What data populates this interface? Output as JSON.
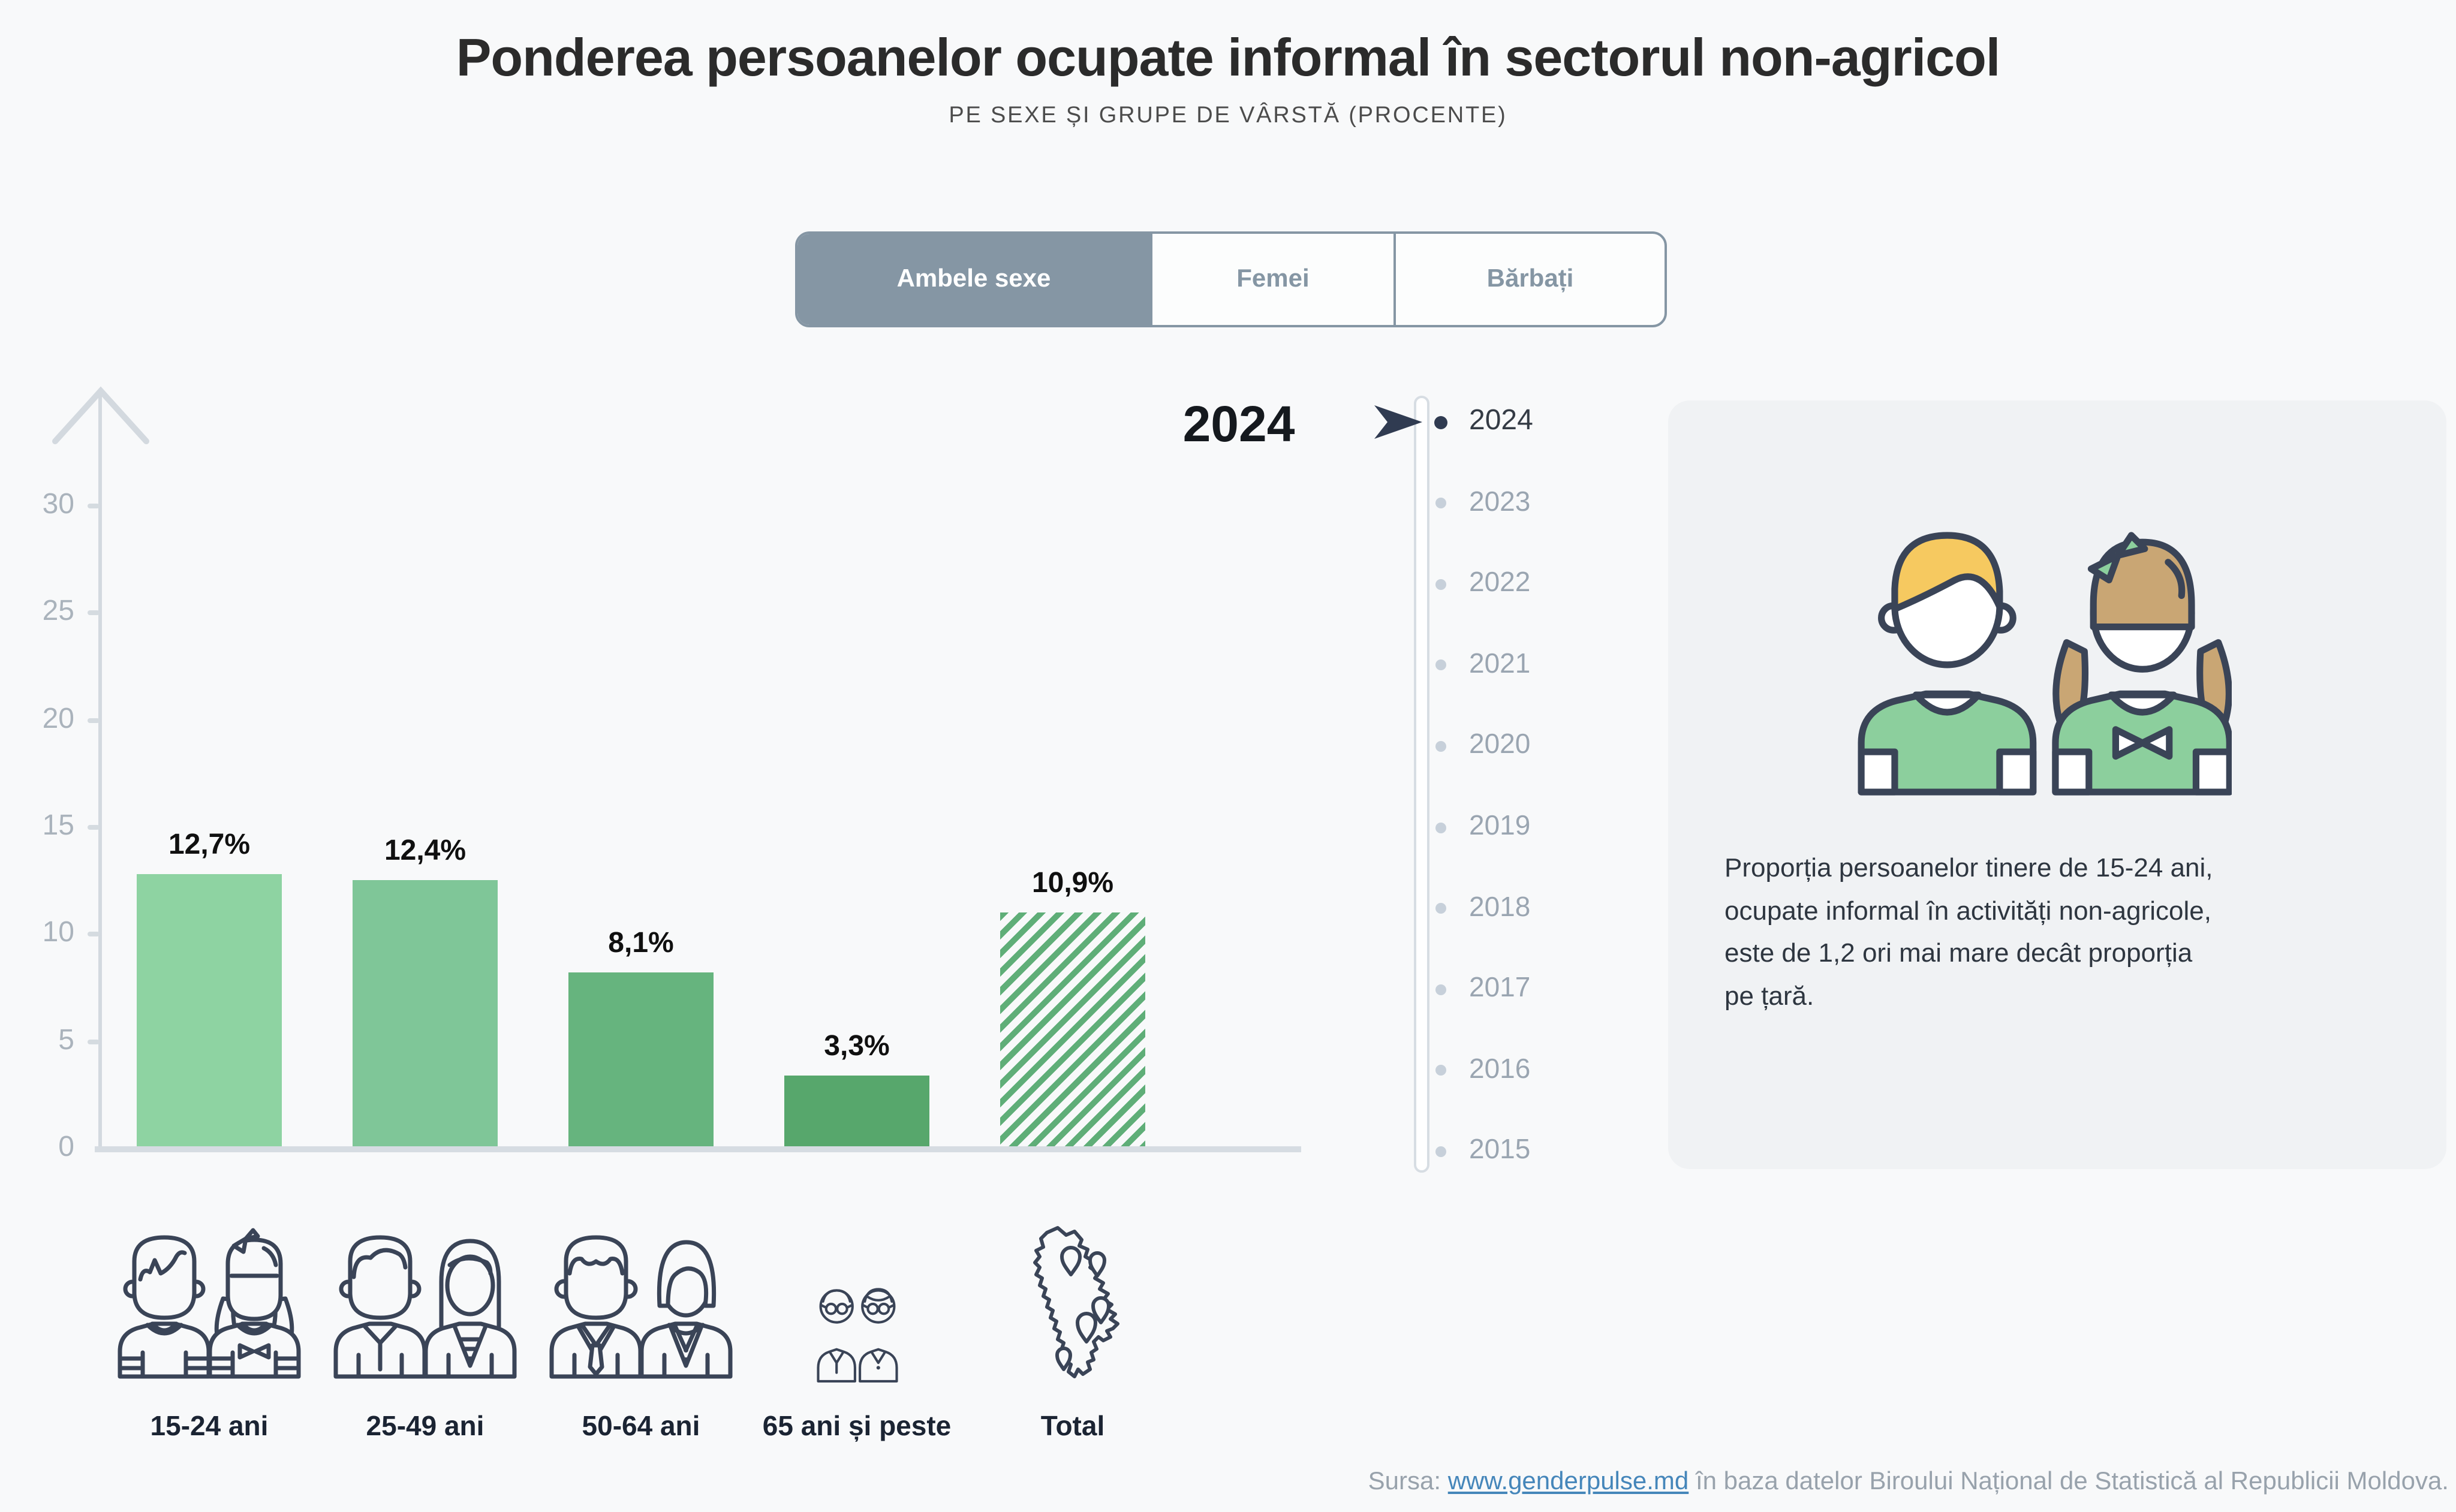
{
  "header": {
    "title": "Ponderea persoanelor ocupate informal în sectorul non-agricol",
    "subtitle": "PE SEXE ȘI GRUPE DE VÂRSTĂ (PROCENTE)"
  },
  "tabs": [
    {
      "label": "Ambele sexe",
      "selected": true
    },
    {
      "label": "Femei",
      "selected": false
    },
    {
      "label": "Bărbați",
      "selected": false
    }
  ],
  "chart_data": {
    "type": "bar",
    "title": "Ponderea persoanelor ocupate informal în sectorul non-agricol",
    "subtitle": "PE SEXE ȘI GRUPE DE VÂRSTĂ (PROCENTE)",
    "selected_series": "Ambele sexe",
    "selected_year": "2024",
    "categories": [
      "15-24 ani",
      "25-49 ani",
      "50-64 ani",
      "65 ani și peste",
      "Total"
    ],
    "values": [
      12.7,
      12.4,
      8.1,
      3.3,
      10.9
    ],
    "value_labels": [
      "12,7%",
      "12,4%",
      "8,1%",
      "3,3%",
      "10,9%"
    ],
    "unit": "%",
    "ylim": [
      0,
      30
    ],
    "yticks": [
      0,
      5,
      10,
      15,
      20,
      25,
      30
    ],
    "grid": false,
    "legend": "none",
    "bar_colors": [
      "#8ed3a2",
      "#7fc698",
      "#66b47e",
      "#57a76c"
    ],
    "total_bar": {
      "index": 4,
      "style": "hatched",
      "color": "#5fae78"
    },
    "category_icons": [
      "young-couple-icon",
      "adult-couple-icon",
      "senior-couple-icon",
      "elderly-couple-icon",
      "moldova-map-icon"
    ]
  },
  "timeline": {
    "selected_year": "2024",
    "years": [
      "2024",
      "2023",
      "2022",
      "2021",
      "2020",
      "2019",
      "2018",
      "2017",
      "2016",
      "2015"
    ]
  },
  "info_box": {
    "lines": [
      "Proporția persoanelor tinere de 15-24 ani,",
      "ocupate informal în activități non-agricole,",
      "este de 1,2 ori mai mare decât proporția",
      "pe țară."
    ]
  },
  "footer": {
    "source_prefix": "Sursa: ",
    "source_link": "www.genderpulse.md",
    "source_suffix": " în baza datelor Biroului Național de Statistică al Republicii Moldova."
  },
  "colors": {
    "background": "#f8f9fa",
    "accent_grayblue": "#8596a4",
    "axis_gray": "#d3d9df",
    "bar_greens": [
      "#8ed3a2",
      "#7fc698",
      "#66b47e",
      "#57a76c"
    ],
    "hatch_green": "#5fae78",
    "selected_dark": "#303b51",
    "muted_text": "#9aa5b1",
    "link_blue": "#4586ba",
    "icon_outline": "#3a4457",
    "hair_yellow": "#f6c960",
    "hair_tan": "#c9a674",
    "shirt_green": "#8ccf9d",
    "info_box_bg": "#f0f2f4"
  }
}
